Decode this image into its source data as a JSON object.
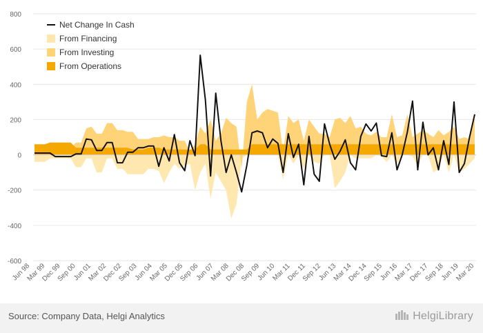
{
  "chart_data": {
    "type": "area",
    "x_tick_labels": [
      "Jun 98",
      "Mar 99",
      "Dec 99",
      "Sep 00",
      "Jun 01",
      "Mar 02",
      "Dec 02",
      "Sep 03",
      "Jun 04",
      "Mar 05",
      "Dec 05",
      "Sep 06",
      "Jun 07",
      "Mar 08",
      "Dec 08",
      "Sep 09",
      "Jun 10",
      "Mar 11",
      "Dec 11",
      "Sep 12",
      "Jun 13",
      "Mar 14",
      "Dec 14",
      "Sep 15",
      "Jun 16",
      "Mar 17",
      "Dec 17",
      "Sep 18",
      "Jun 19",
      "Mar 20"
    ],
    "y_ticks": [
      800,
      600,
      400,
      200,
      0,
      -200,
      -400,
      -600
    ],
    "ylim": [
      -600,
      800
    ],
    "grid": true,
    "legend_position": "top-left",
    "series": [
      {
        "name": "Net Change In Cash",
        "kind": "line",
        "color": "#111111",
        "values": [
          10,
          10,
          10,
          10,
          -10,
          -10,
          -10,
          -10,
          5,
          5,
          90,
          85,
          25,
          25,
          70,
          70,
          -45,
          -45,
          15,
          15,
          40,
          40,
          50,
          50,
          -65,
          40,
          -35,
          115,
          -45,
          -90,
          80,
          -5,
          565,
          310,
          -120,
          350,
          80,
          -100,
          0,
          -100,
          -210,
          -60,
          125,
          135,
          125,
          40,
          90,
          65,
          -100,
          120,
          -15,
          60,
          -170,
          105,
          -110,
          -150,
          175,
          60,
          -25,
          20,
          85,
          -45,
          -85,
          105,
          175,
          135,
          180,
          -5,
          -10,
          125,
          -85,
          0,
          130,
          305,
          -85,
          185,
          0,
          40,
          -85,
          80,
          -55,
          300,
          -100,
          -50,
          100,
          230
        ]
      },
      {
        "name": "From Financing",
        "kind": "area",
        "color": "#ffe7b0",
        "values": [
          -40,
          -40,
          -40,
          -20,
          -20,
          -20,
          -20,
          -20,
          -70,
          -70,
          -20,
          -20,
          -100,
          -100,
          -20,
          -20,
          -80,
          -80,
          -110,
          -110,
          -110,
          -110,
          -80,
          -80,
          -90,
          -160,
          -100,
          -50,
          -80,
          -60,
          -50,
          -200,
          -100,
          -50,
          -250,
          -100,
          -150,
          -200,
          -360,
          -280,
          -20,
          0,
          10,
          50,
          20,
          20,
          10,
          0,
          -140,
          0,
          -50,
          0,
          -80,
          0,
          -40,
          -50,
          0,
          0,
          -190,
          -150,
          -100,
          0,
          -20,
          -20,
          -20,
          -20,
          0,
          -10,
          -40,
          0,
          -50,
          0,
          0,
          -10,
          -60,
          0,
          0,
          -100,
          -80,
          0,
          -100,
          0,
          -100,
          -80,
          -50,
          -20
        ]
      },
      {
        "name": "From Investing",
        "kind": "area",
        "color": "#ffd378",
        "values": [
          30,
          30,
          30,
          40,
          40,
          40,
          40,
          40,
          70,
          70,
          150,
          160,
          120,
          120,
          180,
          180,
          140,
          140,
          130,
          130,
          90,
          90,
          90,
          100,
          100,
          110,
          100,
          100,
          80,
          80,
          20,
          60,
          160,
          120,
          200,
          80,
          120,
          210,
          180,
          160,
          -80,
          300,
          400,
          200,
          240,
          260,
          250,
          240,
          20,
          220,
          180,
          200,
          80,
          200,
          160,
          120,
          120,
          100,
          200,
          210,
          180,
          220,
          150,
          160,
          120,
          110,
          130,
          100,
          100,
          230,
          100,
          110,
          230,
          100,
          120,
          140,
          120,
          100,
          140,
          110,
          130,
          160,
          90,
          100,
          90,
          210
        ]
      },
      {
        "name": "From Operations",
        "kind": "area",
        "color": "#f5a800",
        "values": [
          60,
          60,
          60,
          70,
          70,
          70,
          70,
          70,
          40,
          40,
          40,
          40,
          40,
          40,
          40,
          40,
          40,
          40,
          40,
          30,
          30,
          30,
          40,
          40,
          40,
          30,
          30,
          30,
          30,
          30,
          30,
          30,
          60,
          60,
          30,
          30,
          30,
          30,
          30,
          30,
          30,
          30,
          60,
          60,
          60,
          60,
          60,
          60,
          60,
          60,
          60,
          60,
          60,
          60,
          60,
          60,
          60,
          60,
          60,
          60,
          60,
          60,
          60,
          60,
          60,
          60,
          60,
          60,
          60,
          60,
          60,
          60,
          60,
          60,
          60,
          60,
          60,
          60,
          60,
          60,
          60,
          60,
          60,
          60,
          60,
          60
        ]
      }
    ]
  },
  "footer": {
    "source": "Source: Company Data, Helgi Analytics",
    "brand": "HelgiLibrary"
  }
}
